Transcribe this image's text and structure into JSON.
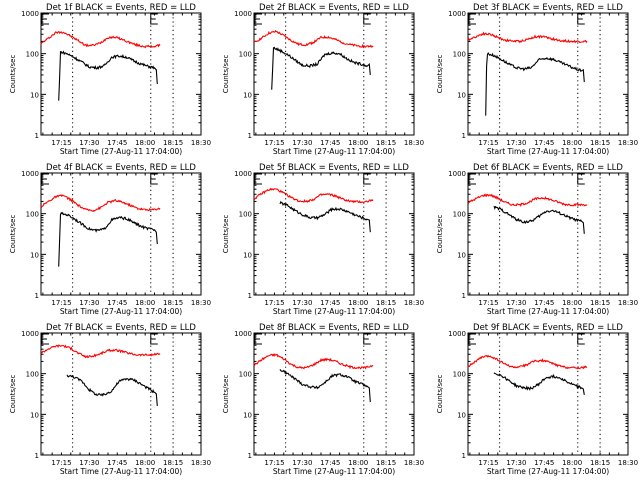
{
  "figure": {
    "time_ticks": [
      "17:15",
      "17:30",
      "17:45",
      "18:00",
      "18:15",
      "18:30"
    ],
    "y_ticks": [
      "1",
      "10",
      "100",
      "1000"
    ],
    "ylabel": "Counts/sec",
    "xlabel": "Start Time (27-Aug-11 17:04:00)",
    "colors": {
      "events": "#000000",
      "lld": "#ff0000",
      "axes": "#000000"
    },
    "marker_label": "E"
  },
  "chart_data": [
    {
      "type": "line",
      "title": "Det 1f BLACK = Events, RED = LLD",
      "xlabel": "Start Time (27-Aug-11 17:04:00)",
      "ylabel": "Counts/sec",
      "yscale": "log",
      "ylim": [
        1,
        1000
      ],
      "xlim_min": [
        4,
        68
      ],
      "x_ticks": [
        "17:15",
        "17:30",
        "17:45",
        "18:00",
        "18:15",
        "18:30"
      ],
      "vlines_min": [
        21,
        63,
        75
      ],
      "series": [
        {
          "name": "LLD",
          "color": "#ff0000",
          "x": [
            4,
            8,
            12,
            16,
            20,
            24,
            28,
            32,
            36,
            40,
            44,
            48,
            52,
            56,
            60,
            64,
            68
          ],
          "y": [
            175,
            240,
            330,
            340,
            270,
            210,
            160,
            160,
            185,
            250,
            255,
            220,
            185,
            160,
            150,
            150,
            160
          ]
        },
        {
          "name": "Events",
          "color": "#000000",
          "x": [
            13.5,
            14,
            14.5,
            18,
            22,
            26,
            30,
            34,
            38,
            42,
            46,
            50,
            54,
            58,
            62,
            65,
            66,
            66.5
          ],
          "y": [
            7,
            25,
            110,
            100,
            80,
            62,
            47,
            45,
            50,
            82,
            88,
            82,
            66,
            55,
            48,
            45,
            40,
            18
          ]
        }
      ]
    },
    {
      "type": "line",
      "title": "Det 2f BLACK = Events, RED = LLD",
      "xlabel": "Start Time (27-Aug-11 17:04:00)",
      "ylabel": "Counts/sec",
      "yscale": "log",
      "ylim": [
        1,
        1000
      ],
      "xlim_min": [
        4,
        68
      ],
      "x_ticks": [
        "17:15",
        "17:30",
        "17:45",
        "18:00",
        "18:15",
        "18:30"
      ],
      "vlines_min": [
        21,
        63,
        75
      ],
      "series": [
        {
          "name": "LLD",
          "color": "#ff0000",
          "x": [
            4,
            8,
            12,
            16,
            20,
            24,
            28,
            32,
            36,
            40,
            44,
            48,
            52,
            56,
            60,
            64,
            68
          ],
          "y": [
            185,
            240,
            320,
            350,
            280,
            210,
            170,
            165,
            190,
            250,
            255,
            220,
            185,
            165,
            155,
            150,
            155
          ]
        },
        {
          "name": "Events",
          "color": "#000000",
          "x": [
            13.5,
            14,
            14.5,
            18,
            22,
            26,
            30,
            34,
            38,
            42,
            46,
            50,
            54,
            58,
            62,
            65,
            66,
            66.5
          ],
          "y": [
            13,
            40,
            140,
            120,
            95,
            70,
            52,
            50,
            55,
            95,
            105,
            100,
            75,
            60,
            55,
            50,
            55,
            30
          ]
        }
      ]
    },
    {
      "type": "line",
      "title": "Det 3f BLACK = Events, RED = LLD",
      "xlabel": "Start Time (27-Aug-11 17:04:00)",
      "ylabel": "Counts/sec",
      "yscale": "log",
      "ylim": [
        1,
        1000
      ],
      "xlim_min": [
        4,
        68
      ],
      "x_ticks": [
        "17:15",
        "17:30",
        "17:45",
        "18:00",
        "18:15",
        "18:30"
      ],
      "vlines_min": [
        21,
        63,
        75
      ],
      "series": [
        {
          "name": "LLD",
          "color": "#ff0000",
          "x": [
            4,
            8,
            12,
            16,
            20,
            24,
            28,
            32,
            36,
            40,
            44,
            48,
            52,
            56,
            60,
            64,
            68
          ],
          "y": [
            220,
            260,
            310,
            300,
            250,
            215,
            205,
            200,
            225,
            260,
            265,
            240,
            215,
            205,
            200,
            200,
            200
          ]
        },
        {
          "name": "Events",
          "color": "#000000",
          "x": [
            13.5,
            14,
            14.5,
            18,
            22,
            26,
            30,
            34,
            38,
            42,
            46,
            50,
            54,
            58,
            62,
            65,
            66,
            66.5
          ],
          "y": [
            3,
            50,
            100,
            90,
            72,
            55,
            45,
            42,
            45,
            70,
            78,
            72,
            60,
            50,
            42,
            38,
            40,
            20
          ]
        }
      ]
    },
    {
      "type": "line",
      "title": "Det 4f BLACK = Events, RED = LLD",
      "xlabel": "Start Time (27-Aug-11 17:04:00)",
      "ylabel": "Counts/sec",
      "yscale": "log",
      "ylim": [
        1,
        1000
      ],
      "xlim_min": [
        4,
        68
      ],
      "x_ticks": [
        "17:15",
        "17:30",
        "17:45",
        "18:00",
        "18:15",
        "18:30"
      ],
      "vlines_min": [
        21,
        63,
        75
      ],
      "series": [
        {
          "name": "LLD",
          "color": "#ff0000",
          "x": [
            4,
            8,
            12,
            16,
            20,
            24,
            28,
            32,
            36,
            40,
            44,
            48,
            52,
            56,
            60,
            64,
            68
          ],
          "y": [
            150,
            200,
            260,
            280,
            220,
            160,
            125,
            120,
            140,
            190,
            210,
            190,
            160,
            135,
            125,
            125,
            135
          ]
        },
        {
          "name": "Events",
          "color": "#000000",
          "x": [
            13.5,
            14,
            14.5,
            18,
            22,
            26,
            30,
            34,
            38,
            42,
            46,
            50,
            54,
            58,
            62,
            65,
            66,
            66.5
          ],
          "y": [
            5,
            22,
            100,
            95,
            75,
            55,
            42,
            38,
            42,
            70,
            80,
            75,
            60,
            48,
            42,
            40,
            35,
            18
          ]
        }
      ]
    },
    {
      "type": "line",
      "title": "Det 5f BLACK = Events, RED = LLD",
      "xlabel": "Start Time (27-Aug-11 17:04:00)",
      "ylabel": "Counts/sec",
      "yscale": "log",
      "ylim": [
        1,
        1000
      ],
      "xlim_min": [
        4,
        68
      ],
      "x_ticks": [
        "17:15",
        "17:30",
        "17:45",
        "18:00",
        "18:15",
        "18:30"
      ],
      "vlines_min": [
        21,
        63,
        75
      ],
      "series": [
        {
          "name": "LLD",
          "color": "#ff0000",
          "x": [
            4,
            8,
            12,
            16,
            20,
            24,
            28,
            32,
            36,
            40,
            44,
            48,
            52,
            56,
            60,
            64,
            68
          ],
          "y": [
            230,
            310,
            390,
            400,
            320,
            250,
            205,
            200,
            225,
            290,
            300,
            270,
            225,
            200,
            195,
            195,
            220
          ]
        },
        {
          "name": "Events",
          "color": "#000000",
          "x": [
            18,
            22,
            26,
            30,
            34,
            38,
            42,
            46,
            50,
            54,
            58,
            62,
            65,
            66,
            66.5
          ],
          "y": [
            185,
            160,
            120,
            95,
            80,
            78,
            95,
            130,
            130,
            115,
            95,
            80,
            72,
            70,
            35
          ]
        }
      ]
    },
    {
      "type": "line",
      "title": "Det 6f BLACK = Events, RED = LLD",
      "xlabel": "Start Time (27-Aug-11 17:04:00)",
      "ylabel": "Counts/sec",
      "yscale": "log",
      "ylim": [
        1,
        1000
      ],
      "xlim_min": [
        4,
        68
      ],
      "x_ticks": [
        "17:15",
        "17:30",
        "17:45",
        "18:00",
        "18:15",
        "18:30"
      ],
      "vlines_min": [
        21,
        63,
        75
      ],
      "series": [
        {
          "name": "LLD",
          "color": "#ff0000",
          "x": [
            4,
            8,
            12,
            16,
            20,
            24,
            28,
            32,
            36,
            40,
            44,
            48,
            52,
            56,
            60,
            64,
            68
          ],
          "y": [
            185,
            230,
            280,
            290,
            240,
            190,
            165,
            165,
            185,
            230,
            245,
            225,
            195,
            170,
            165,
            165,
            165
          ]
        },
        {
          "name": "Events",
          "color": "#000000",
          "x": [
            18,
            22,
            26,
            30,
            34,
            38,
            42,
            46,
            50,
            54,
            58,
            62,
            65,
            66,
            66.5
          ],
          "y": [
            145,
            125,
            95,
            72,
            62,
            65,
            85,
            115,
            118,
            100,
            82,
            70,
            65,
            60,
            32
          ]
        }
      ]
    },
    {
      "type": "line",
      "title": "Det 7f BLACK = Events, RED = LLD",
      "xlabel": "Start Time (27-Aug-11 17:04:00)",
      "ylabel": "Counts/sec",
      "yscale": "log",
      "ylim": [
        1,
        1000
      ],
      "xlim_min": [
        4,
        68
      ],
      "x_ticks": [
        "17:15",
        "17:30",
        "17:45",
        "18:00",
        "18:15",
        "18:30"
      ],
      "vlines_min": [
        21,
        63,
        75
      ],
      "series": [
        {
          "name": "LLD",
          "color": "#ff0000",
          "x": [
            4,
            8,
            12,
            16,
            20,
            24,
            28,
            32,
            36,
            40,
            44,
            48,
            52,
            56,
            60,
            64,
            68
          ],
          "y": [
            320,
            410,
            480,
            490,
            420,
            320,
            260,
            270,
            310,
            370,
            380,
            350,
            310,
            290,
            290,
            290,
            310
          ]
        },
        {
          "name": "Events",
          "color": "#000000",
          "x": [
            18,
            22,
            26,
            30,
            34,
            38,
            42,
            46,
            50,
            54,
            58,
            62,
            65,
            66,
            66.5
          ],
          "y": [
            90,
            82,
            65,
            40,
            30,
            30,
            38,
            65,
            75,
            70,
            55,
            42,
            35,
            32,
            16
          ]
        }
      ]
    },
    {
      "type": "line",
      "title": "Det 8f BLACK = Events, RED = LLD",
      "xlabel": "Start Time (27-Aug-11 17:04:00)",
      "ylabel": "Counts/sec",
      "yscale": "log",
      "ylim": [
        1,
        1000
      ],
      "xlim_min": [
        4,
        68
      ],
      "x_ticks": [
        "17:15",
        "17:30",
        "17:45",
        "18:00",
        "18:15",
        "18:30"
      ],
      "vlines_min": [
        21,
        63,
        75
      ],
      "series": [
        {
          "name": "LLD",
          "color": "#ff0000",
          "x": [
            4,
            8,
            12,
            16,
            20,
            24,
            28,
            32,
            36,
            40,
            44,
            48,
            52,
            56,
            60,
            64,
            68
          ],
          "y": [
            160,
            220,
            280,
            290,
            230,
            170,
            140,
            140,
            165,
            215,
            225,
            200,
            165,
            145,
            140,
            140,
            160
          ]
        },
        {
          "name": "Events",
          "color": "#000000",
          "x": [
            18,
            22,
            26,
            30,
            34,
            38,
            42,
            46,
            50,
            54,
            58,
            62,
            65,
            66,
            66.5
          ],
          "y": [
            125,
            100,
            75,
            55,
            48,
            45,
            60,
            88,
            95,
            85,
            65,
            55,
            48,
            45,
            20
          ]
        }
      ]
    },
    {
      "type": "line",
      "title": "Det 9f BLACK = Events, RED = LLD",
      "xlabel": "Start Time (27-Aug-11 17:04:00)",
      "ylabel": "Counts/sec",
      "yscale": "log",
      "ylim": [
        1,
        1000
      ],
      "xlim_min": [
        4,
        68
      ],
      "x_ticks": [
        "17:15",
        "17:30",
        "17:45",
        "18:00",
        "18:15",
        "18:30"
      ],
      "vlines_min": [
        21,
        63,
        75
      ],
      "series": [
        {
          "name": "LLD",
          "color": "#ff0000",
          "x": [
            4,
            8,
            12,
            16,
            20,
            24,
            28,
            32,
            36,
            40,
            44,
            48,
            52,
            56,
            60,
            64,
            68
          ],
          "y": [
            150,
            200,
            260,
            270,
            220,
            170,
            145,
            145,
            170,
            205,
            210,
            190,
            160,
            145,
            140,
            140,
            145
          ]
        },
        {
          "name": "Events",
          "color": "#000000",
          "x": [
            18,
            22,
            26,
            30,
            34,
            38,
            42,
            46,
            50,
            54,
            58,
            62,
            65,
            66,
            66.5
          ],
          "y": [
            105,
            90,
            68,
            50,
            45,
            43,
            55,
            80,
            85,
            78,
            60,
            50,
            45,
            42,
            30
          ]
        }
      ]
    }
  ]
}
